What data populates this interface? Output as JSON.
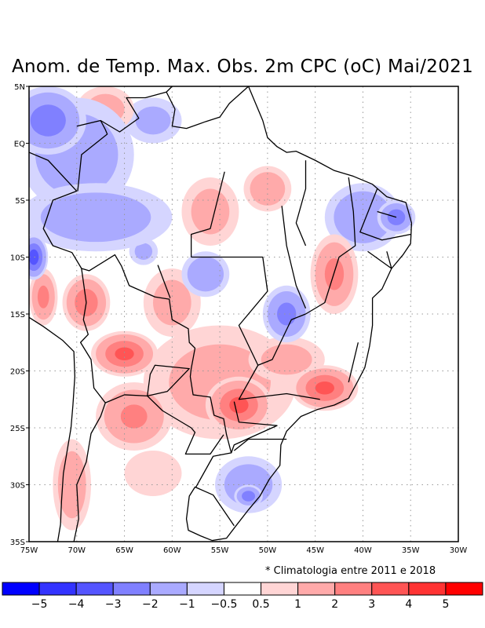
{
  "title": "Anom. de Temp. Max. Obs. 2m CPC (oC) Mai/2021",
  "footnote": "* Climatologia entre 2011 e 2018",
  "map": {
    "lon_range": [
      -75,
      -30
    ],
    "lat_range": [
      -35,
      5
    ],
    "lat_ticks": [
      {
        "v": 5,
        "label": "5N"
      },
      {
        "v": 0,
        "label": "EQ"
      },
      {
        "v": -5,
        "label": "5S"
      },
      {
        "v": -10,
        "label": "10S"
      },
      {
        "v": -15,
        "label": "15S"
      },
      {
        "v": -20,
        "label": "20S"
      },
      {
        "v": -25,
        "label": "25S"
      },
      {
        "v": -30,
        "label": "30S"
      },
      {
        "v": -35,
        "label": "35S"
      }
    ],
    "lon_ticks": [
      {
        "v": -75,
        "label": "75W"
      },
      {
        "v": -70,
        "label": "70W"
      },
      {
        "v": -65,
        "label": "65W"
      },
      {
        "v": -60,
        "label": "60W"
      },
      {
        "v": -55,
        "label": "55W"
      },
      {
        "v": -50,
        "label": "50W"
      },
      {
        "v": -45,
        "label": "45W"
      },
      {
        "v": -40,
        "label": "40W"
      },
      {
        "v": -35,
        "label": "35W"
      },
      {
        "v": -30,
        "label": "30W"
      }
    ],
    "anomaly_cells": [
      {
        "lon": -73,
        "lat": 2,
        "rlon": 4,
        "rlat": 3,
        "value": -2.5
      },
      {
        "lon": -70,
        "lat": -1,
        "rlon": 6,
        "rlat": 5,
        "value": -1.5
      },
      {
        "lon": -68,
        "lat": -6.5,
        "rlon": 8,
        "rlat": 3,
        "value": -1.5
      },
      {
        "lon": -74.5,
        "lat": -10,
        "rlon": 1.5,
        "rlat": 2,
        "value": -3.5
      },
      {
        "lon": -62,
        "lat": 2,
        "rlon": 3,
        "rlat": 2,
        "value": -1
      },
      {
        "lon": -40,
        "lat": -6.5,
        "rlon": 4,
        "rlat": 3,
        "value": -1.8
      },
      {
        "lon": -36.5,
        "lat": -6.5,
        "rlon": 2,
        "rlat": 1.5,
        "value": -2.5
      },
      {
        "lon": -48,
        "lat": -15,
        "rlon": 2.5,
        "rlat": 2.5,
        "value": -2.2
      },
      {
        "lon": -56.5,
        "lat": -11.5,
        "rlon": 2.5,
        "rlat": 2,
        "value": -1.8
      },
      {
        "lon": -63,
        "lat": -9.5,
        "rlon": 1.5,
        "rlat": 1.2,
        "value": -1
      },
      {
        "lon": -52,
        "lat": -30,
        "rlon": 3.5,
        "rlat": 2.5,
        "value": -1.5
      },
      {
        "lon": -52,
        "lat": -31,
        "rlon": 1.5,
        "rlat": 1,
        "value": -2.5
      },
      {
        "lon": -55,
        "lat": -21,
        "rlon": 8,
        "rlat": 5,
        "value": 1.2
      },
      {
        "lon": -53,
        "lat": -23,
        "rlon": 3.5,
        "rlat": 2.5,
        "value": 3.2
      },
      {
        "lon": -44,
        "lat": -21.5,
        "rlon": 3.5,
        "rlat": 2,
        "value": 3.2
      },
      {
        "lon": -48,
        "lat": -19,
        "rlon": 4,
        "rlat": 2,
        "value": 1.2
      },
      {
        "lon": -65,
        "lat": -18.5,
        "rlon": 3.5,
        "rlat": 2,
        "value": 3.2
      },
      {
        "lon": -64,
        "lat": -24,
        "rlon": 4,
        "rlat": 3,
        "value": 2
      },
      {
        "lon": -69,
        "lat": -14,
        "rlon": 2.5,
        "rlat": 2.5,
        "value": 2.6
      },
      {
        "lon": -73.5,
        "lat": -13.5,
        "rlon": 1.5,
        "rlat": 2.5,
        "value": 2.2
      },
      {
        "lon": -43,
        "lat": -11.5,
        "rlon": 2.5,
        "rlat": 3.5,
        "value": 2.2
      },
      {
        "lon": -70.5,
        "lat": -30,
        "rlon": 2,
        "rlat": 4,
        "value": 1.6
      },
      {
        "lon": -50,
        "lat": -4,
        "rlon": 2.5,
        "rlat": 2,
        "value": 1.6
      },
      {
        "lon": -56,
        "lat": -6,
        "rlon": 3,
        "rlat": 3,
        "value": 1.2
      },
      {
        "lon": -60,
        "lat": -14,
        "rlon": 3,
        "rlat": 3,
        "value": 1.2
      },
      {
        "lon": -67,
        "lat": 3,
        "rlon": 3,
        "rlat": 2,
        "value": 1.2
      },
      {
        "lon": -62,
        "lat": -29,
        "rlon": 3,
        "rlat": 2,
        "value": 0.8
      }
    ]
  },
  "colorbar": {
    "colors": [
      "#0000ff",
      "#3333ff",
      "#5555ff",
      "#8080ff",
      "#aaaaff",
      "#d5d5ff",
      "#ffffff",
      "#ffd5d5",
      "#ffaaaa",
      "#ff8080",
      "#ff5555",
      "#ff3333",
      "#ff0000"
    ],
    "levels": [
      -5,
      -4,
      -3,
      -2,
      -1,
      -0.5,
      0.5,
      1,
      2,
      3,
      4,
      5
    ],
    "labels": [
      "−5",
      "−4",
      "−3",
      "−2",
      "−1",
      "−0.5",
      "0.5",
      "1",
      "2",
      "3",
      "4",
      "5"
    ]
  }
}
